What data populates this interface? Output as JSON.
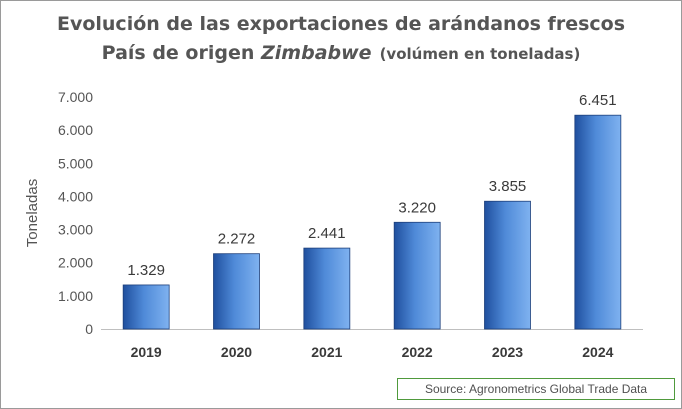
{
  "title_line1": "Evolución de las exportaciones de arándanos frescos",
  "title_line2_prefix": "País de origen ",
  "title_line2_country": "Zimbabwe",
  "title_line2_suffix": "(volúmen en toneladas)",
  "source": "Source: Agronometrics Global Trade Data",
  "colors": {
    "bar_dark": "#1f4f9e",
    "bar_mid": "#4f8ad8",
    "bar_light": "#7fb2f0",
    "text": "#555555"
  },
  "chart_data": {
    "type": "bar",
    "categories": [
      "2019",
      "2020",
      "2021",
      "2022",
      "2023",
      "2024"
    ],
    "values": [
      1329,
      2272,
      2441,
      3220,
      3855,
      6451
    ],
    "value_labels": [
      "1.329",
      "2.272",
      "2.441",
      "3.220",
      "3.855",
      "6.451"
    ],
    "title": "Evolución de las exportaciones de arándanos frescos País de origen Zimbabwe (volúmen en toneladas)",
    "xlabel": "",
    "ylabel": "Toneladas",
    "ylim": [
      0,
      7000
    ],
    "yticks": [
      0,
      1000,
      2000,
      3000,
      4000,
      5000,
      6000,
      7000
    ],
    "ytick_labels": [
      "0",
      "1.000",
      "2.000",
      "3.000",
      "4.000",
      "5.000",
      "6.000",
      "7.000"
    ],
    "grid": false,
    "legend": "none"
  }
}
